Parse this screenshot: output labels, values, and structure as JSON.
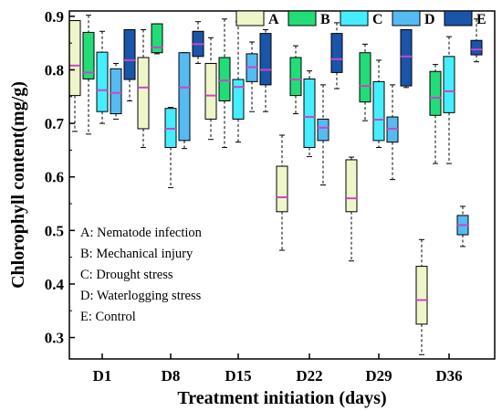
{
  "chart_data": {
    "type": "box",
    "xlabel": "Treatment initiation (days)",
    "ylabel": "Chlorophyll content(mg/g)",
    "ylim": [
      0.26,
      0.91
    ],
    "yticks": [
      "0.3",
      "0.4",
      "0.5",
      "0.6",
      "0.7",
      "0.8",
      "0.9"
    ],
    "categories": [
      "D1",
      "D8",
      "D15",
      "D22",
      "D29",
      "D36"
    ],
    "legend_position": "top-right",
    "series": [
      {
        "name": "A",
        "color": "#eef6c9",
        "boxes": [
          {
            "min": 0.685,
            "q1": 0.752,
            "median": 0.808,
            "q3": 0.892,
            "max": 0.892
          },
          {
            "min": 0.655,
            "q1": 0.69,
            "median": 0.767,
            "q3": 0.823,
            "max": 0.875
          },
          {
            "min": 0.67,
            "q1": 0.708,
            "median": 0.752,
            "q3": 0.812,
            "max": 0.86
          },
          {
            "min": 0.463,
            "q1": 0.535,
            "median": 0.562,
            "q3": 0.62,
            "max": 0.678
          },
          {
            "min": 0.443,
            "q1": 0.535,
            "median": 0.56,
            "q3": 0.632,
            "max": 0.637
          },
          {
            "min": 0.268,
            "q1": 0.325,
            "median": 0.37,
            "q3": 0.433,
            "max": 0.483
          }
        ]
      },
      {
        "name": "B",
        "color": "#22dd77",
        "boxes": [
          {
            "min": 0.68,
            "q1": 0.783,
            "median": 0.795,
            "q3": 0.87,
            "max": 0.902
          },
          {
            "min": 0.83,
            "q1": 0.832,
            "median": 0.842,
            "q3": 0.886,
            "max": 0.886
          },
          {
            "min": 0.655,
            "q1": 0.742,
            "median": 0.78,
            "q3": 0.823,
            "max": 0.895
          },
          {
            "min": 0.718,
            "q1": 0.752,
            "median": 0.782,
            "q3": 0.823,
            "max": 0.845
          },
          {
            "min": 0.705,
            "q1": 0.74,
            "median": 0.77,
            "q3": 0.832,
            "max": 0.848
          },
          {
            "min": 0.625,
            "q1": 0.715,
            "median": 0.748,
            "q3": 0.797,
            "max": 0.81
          }
        ]
      },
      {
        "name": "C",
        "color": "#44eeff",
        "boxes": [
          {
            "min": 0.7,
            "q1": 0.722,
            "median": 0.762,
            "q3": 0.833,
            "max": 0.872
          },
          {
            "min": 0.58,
            "q1": 0.655,
            "median": 0.69,
            "q3": 0.728,
            "max": 0.73
          },
          {
            "min": 0.665,
            "q1": 0.708,
            "median": 0.768,
            "q3": 0.782,
            "max": 0.89
          },
          {
            "min": 0.638,
            "q1": 0.655,
            "median": 0.712,
            "q3": 0.783,
            "max": 0.798
          },
          {
            "min": 0.655,
            "q1": 0.668,
            "median": 0.707,
            "q3": 0.778,
            "max": 0.818
          },
          {
            "min": 0.625,
            "q1": 0.72,
            "median": 0.76,
            "q3": 0.825,
            "max": 0.862
          }
        ]
      },
      {
        "name": "D",
        "color": "#55bbf0",
        "boxes": [
          {
            "min": 0.708,
            "q1": 0.718,
            "median": 0.757,
            "q3": 0.802,
            "max": 0.812
          },
          {
            "min": 0.653,
            "q1": 0.668,
            "median": 0.767,
            "q3": 0.832,
            "max": 0.832
          },
          {
            "min": 0.722,
            "q1": 0.778,
            "median": 0.805,
            "q3": 0.83,
            "max": 0.852
          },
          {
            "min": 0.585,
            "q1": 0.668,
            "median": 0.692,
            "q3": 0.708,
            "max": 0.772
          },
          {
            "min": 0.595,
            "q1": 0.665,
            "median": 0.69,
            "q3": 0.712,
            "max": 0.772
          },
          {
            "min": 0.47,
            "q1": 0.492,
            "median": 0.51,
            "q3": 0.528,
            "max": 0.545
          }
        ]
      },
      {
        "name": "E",
        "color": "#1a55aa",
        "boxes": [
          {
            "min": 0.742,
            "q1": 0.782,
            "median": 0.818,
            "q3": 0.875,
            "max": 0.875
          },
          {
            "min": 0.812,
            "q1": 0.825,
            "median": 0.848,
            "q3": 0.872,
            "max": 0.89
          },
          {
            "min": 0.722,
            "q1": 0.772,
            "median": 0.8,
            "q3": 0.868,
            "max": 0.875
          },
          {
            "min": 0.765,
            "q1": 0.795,
            "median": 0.82,
            "q3": 0.868,
            "max": 0.888
          },
          {
            "min": 0.767,
            "q1": 0.77,
            "median": 0.825,
            "q3": 0.875,
            "max": 0.875
          },
          {
            "min": 0.815,
            "q1": 0.828,
            "median": 0.838,
            "q3": 0.855,
            "max": 0.895
          }
        ]
      }
    ],
    "annotations": [
      "A: Nematode infection",
      "B: Mechanical injury",
      "C: Drought stress",
      "D: Waterlogging stress",
      "E: Control"
    ]
  }
}
